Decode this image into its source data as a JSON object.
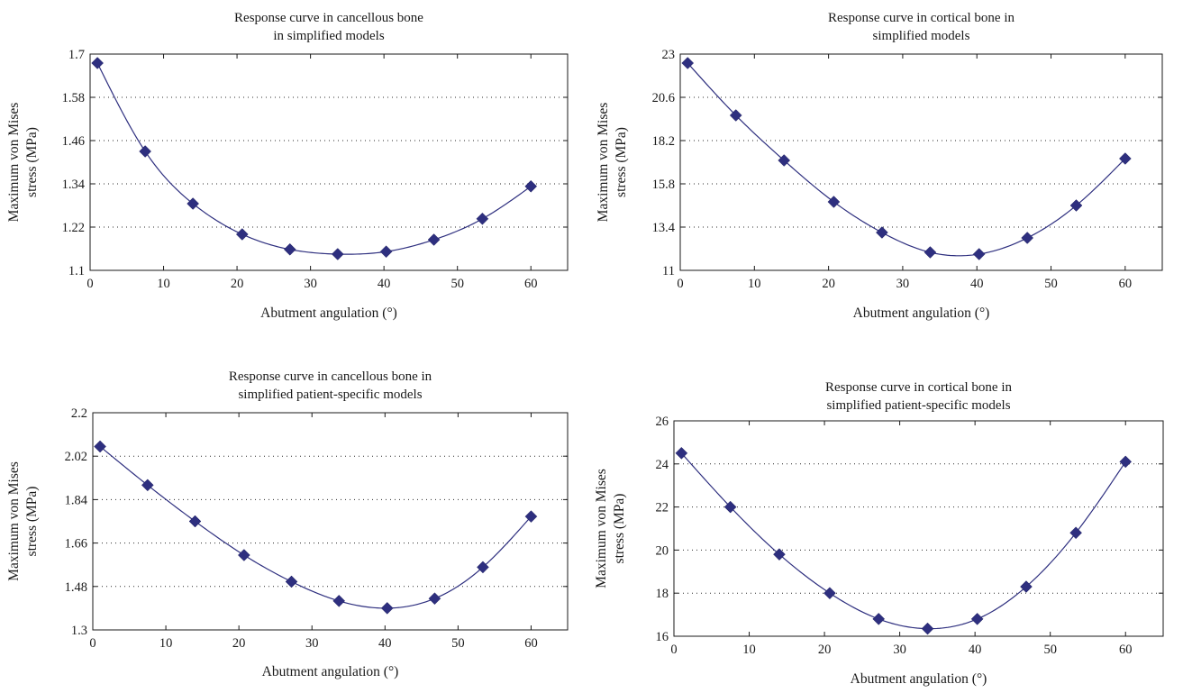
{
  "chart_data": [
    {
      "type": "line",
      "title": [
        "Response curve in cancellous bone",
        "in simplified models"
      ],
      "xlabel": "Abutment angulation (°)",
      "ylabel": [
        "Maximum von Mises",
        "stress (MPa)"
      ],
      "xlim": [
        0,
        65
      ],
      "ylim": [
        1.1,
        1.7
      ],
      "xticks": [
        0,
        10,
        20,
        30,
        40,
        50,
        60
      ],
      "yticks": [
        1.1,
        1.22,
        1.34,
        1.46,
        1.58,
        1.7
      ],
      "ytick_labels": [
        "1.1",
        "1.22",
        "1.34",
        "1.46",
        "1.58",
        "1.7"
      ],
      "grid": "horizontal dotted",
      "series": [
        {
          "x": [
            1,
            7.5,
            14,
            20.7,
            27.2,
            33.7,
            40.3,
            46.8,
            53.4,
            60
          ],
          "y": [
            1.675,
            1.43,
            1.285,
            1.2,
            1.158,
            1.145,
            1.152,
            1.185,
            1.243,
            1.333
          ]
        }
      ]
    },
    {
      "type": "line",
      "title": [
        "Response curve in cortical bone in",
        "simplified models"
      ],
      "xlabel": "Abutment angulation (°)",
      "ylabel": [
        "Maximum von Mises",
        "stress (MPa)"
      ],
      "xlim": [
        0,
        65
      ],
      "ylim": [
        11,
        23
      ],
      "xticks": [
        0,
        10,
        20,
        30,
        40,
        50,
        60
      ],
      "yticks": [
        11,
        13.4,
        15.8,
        18.2,
        20.6,
        23
      ],
      "ytick_labels": [
        "11",
        "13.4",
        "15.8",
        "18.2",
        "20.6",
        "23"
      ],
      "grid": "horizontal dotted",
      "series": [
        {
          "x": [
            1,
            7.5,
            14,
            20.7,
            27.2,
            33.7,
            40.3,
            46.8,
            53.4,
            60
          ],
          "y": [
            22.5,
            19.6,
            17.1,
            14.8,
            13.1,
            12.0,
            11.9,
            12.8,
            14.6,
            17.2
          ]
        }
      ]
    },
    {
      "type": "line",
      "title": [
        "Response curve in cancellous bone in",
        "simplified patient-specific models"
      ],
      "xlabel": "Abutment angulation (°)",
      "ylabel": [
        "Maximum von Mises",
        "stress (MPa)"
      ],
      "xlim": [
        0,
        65
      ],
      "ylim": [
        1.3,
        2.2
      ],
      "xticks": [
        0,
        10,
        20,
        30,
        40,
        50,
        60
      ],
      "yticks": [
        1.3,
        1.48,
        1.66,
        1.84,
        2.02,
        2.2
      ],
      "ytick_labels": [
        "1.3",
        "1.48",
        "1.66",
        "1.84",
        "2.02",
        "2.2"
      ],
      "grid": "horizontal dotted",
      "series": [
        {
          "x": [
            1,
            7.5,
            14,
            20.7,
            27.2,
            33.7,
            40.3,
            46.8,
            53.4,
            60
          ],
          "y": [
            2.06,
            1.9,
            1.75,
            1.61,
            1.5,
            1.42,
            1.39,
            1.43,
            1.56,
            1.77
          ]
        }
      ]
    },
    {
      "type": "line",
      "title": [
        "Response curve in cortical bone in",
        "simplified patient-specific models"
      ],
      "xlabel": "Abutment angulation (°)",
      "ylabel": [
        "Maximum von Mises",
        "stress (MPa)"
      ],
      "xlim": [
        0,
        65
      ],
      "ylim": [
        16,
        26
      ],
      "xticks": [
        0,
        10,
        20,
        30,
        40,
        50,
        60
      ],
      "yticks": [
        16,
        18,
        20,
        22,
        24,
        26
      ],
      "ytick_labels": [
        "16",
        "18",
        "20",
        "22",
        "24",
        "26"
      ],
      "grid": "horizontal dotted",
      "series": [
        {
          "x": [
            1,
            7.5,
            14,
            20.7,
            27.2,
            33.7,
            40.3,
            46.8,
            53.4,
            60
          ],
          "y": [
            24.5,
            22.0,
            19.8,
            18.0,
            16.8,
            16.35,
            16.8,
            18.3,
            20.8,
            24.1
          ]
        }
      ]
    }
  ],
  "colors": {
    "series": "#2e2f7f",
    "axis": "#1a1a1a"
  }
}
